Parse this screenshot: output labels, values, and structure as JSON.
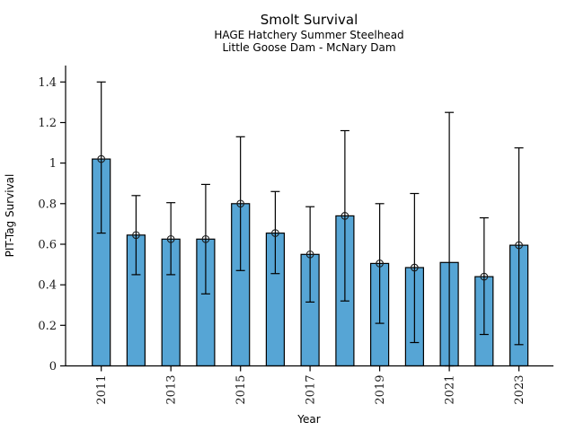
{
  "figure": {
    "title": "Smolt Survival",
    "subtitle_line1": "HAGE Hatchery Summer Steelhead",
    "subtitle_line2": "Little Goose Dam - McNary Dam"
  },
  "chart_data": {
    "type": "bar",
    "title": "Smolt Survival",
    "subtitle": [
      "HAGE Hatchery Summer Steelhead",
      "Little Goose Dam - McNary Dam"
    ],
    "xlabel": "Year",
    "ylabel": "PIT-Tag Survival",
    "categories": [
      2011,
      2012,
      2013,
      2014,
      2015,
      2016,
      2017,
      2018,
      2019,
      2020,
      2021,
      2022,
      2023
    ],
    "values": [
      1.02,
      0.645,
      0.625,
      0.625,
      0.8,
      0.655,
      0.55,
      0.74,
      0.505,
      0.485,
      0.51,
      0.44,
      0.595
    ],
    "error_low": [
      0.655,
      0.45,
      0.45,
      0.355,
      0.47,
      0.455,
      0.315,
      0.32,
      0.21,
      0.115,
      0.0,
      0.155,
      0.105
    ],
    "error_high": [
      1.4,
      0.84,
      0.805,
      0.895,
      1.13,
      0.86,
      0.785,
      1.16,
      0.8,
      0.85,
      1.25,
      0.73,
      1.075
    ],
    "point_marker_shown": [
      true,
      true,
      true,
      true,
      true,
      true,
      true,
      true,
      true,
      true,
      false,
      true,
      true
    ],
    "ylim": [
      0,
      1.48
    ],
    "yticks": [
      0,
      0.2,
      0.4,
      0.6,
      0.8,
      1,
      1.2,
      1.4
    ],
    "ytick_labels": [
      "0",
      "0.2",
      "0.4",
      "0.6",
      "0.8",
      "1",
      "1.2",
      "1.4"
    ],
    "xticks": [
      2011,
      2013,
      2015,
      2017,
      2019,
      2021,
      2023
    ],
    "grid": false,
    "legend": null,
    "bar_color": "#56a5d5",
    "bar_edge_color": "#000000",
    "error_bar_color": "#000000",
    "marker_style": "open-circle"
  }
}
